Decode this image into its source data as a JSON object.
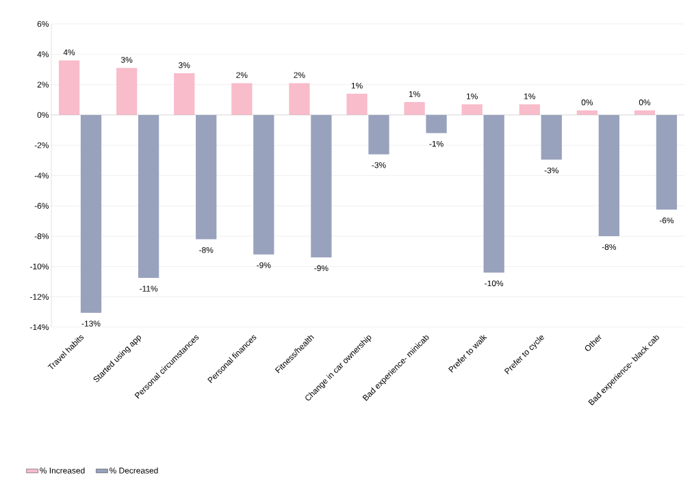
{
  "chart_data": {
    "type": "bar",
    "categories": [
      "Travel habits",
      "Started using app",
      "Personal circumstances",
      "Personal finances",
      "Fitness/health",
      "Change in car ownership",
      "Bad experience- minicab",
      "Prefer to walk",
      "Prefer to cycle",
      "Other",
      "Bad experience- black cab"
    ],
    "series": [
      {
        "name": "% Increased",
        "color": "#f8bccb",
        "values": [
          3.6,
          3.1,
          2.75,
          2.1,
          2.1,
          1.4,
          0.85,
          0.7,
          0.7,
          0.3,
          0.3
        ],
        "value_labels": [
          "4%",
          "3%",
          "3%",
          "2%",
          "2%",
          "1%",
          "1%",
          "1%",
          "1%",
          "0%",
          "0%"
        ]
      },
      {
        "name": "% Decreased",
        "color": "#98a2bd",
        "values": [
          -13.05,
          -10.75,
          -8.2,
          -9.2,
          -9.4,
          -2.6,
          -1.2,
          -10.4,
          -2.95,
          -8.0,
          -6.25
        ],
        "value_labels": [
          "-13%",
          "-11%",
          "-8%",
          "-9%",
          "-9%",
          "-3%",
          "-1%",
          "-10%",
          "-3%",
          "-8%",
          "-6%"
        ]
      }
    ],
    "ylim": [
      -14,
      6
    ],
    "yticks": [
      {
        "value": -14,
        "label": "-14%"
      },
      {
        "value": -12,
        "label": "-12%"
      },
      {
        "value": -10,
        "label": "-10%"
      },
      {
        "value": -8,
        "label": "-8%"
      },
      {
        "value": -6,
        "label": "-6%"
      },
      {
        "value": -4,
        "label": "-4%"
      },
      {
        "value": -2,
        "label": "-2%"
      },
      {
        "value": 0,
        "label": "0%"
      },
      {
        "value": 2,
        "label": "2%"
      },
      {
        "value": 4,
        "label": "4%"
      },
      {
        "value": 6,
        "label": "6%"
      }
    ],
    "grid": "y",
    "legend": "bottom left"
  }
}
